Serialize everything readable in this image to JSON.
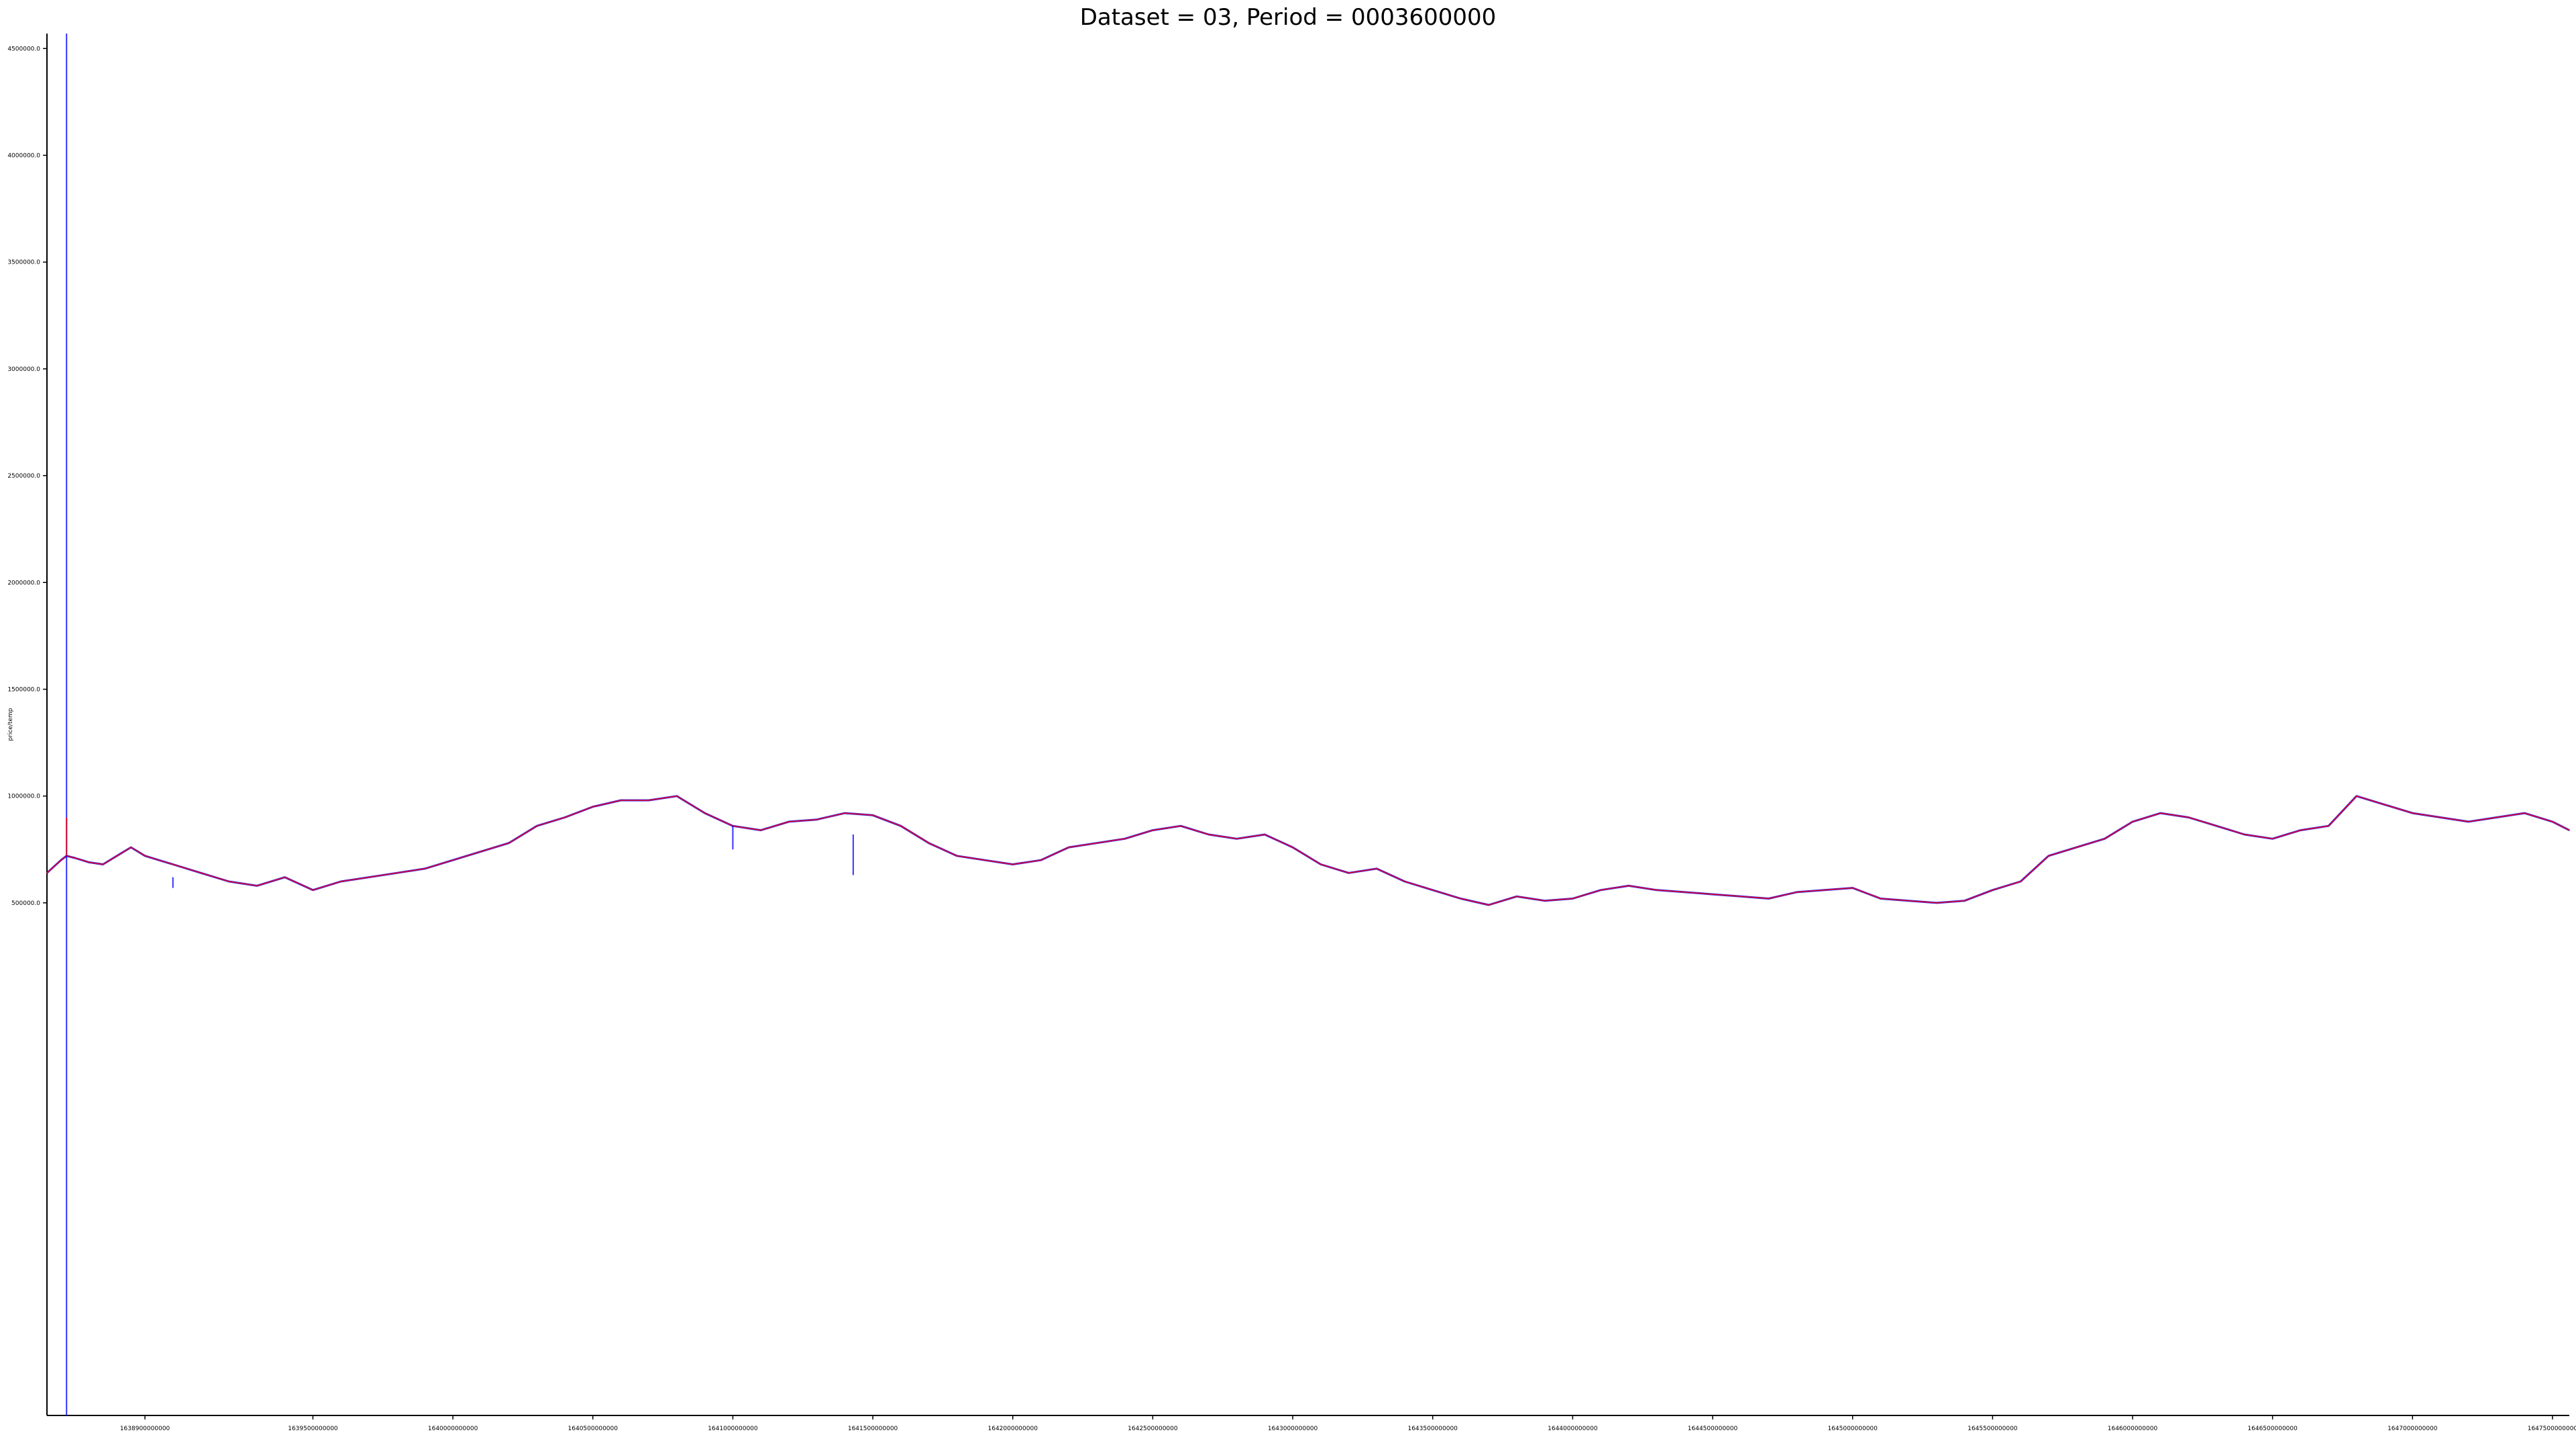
{
  "title": "Dataset = 03, Period = 0003600000",
  "chart_data": {
    "type": "line",
    "title": "Dataset = 03, Period = 0003600000",
    "xlabel": "",
    "ylabel": "price/temp",
    "xlim": [
      1638550000000,
      1647560000000
    ],
    "ylim": [
      -1900000,
      4570000
    ],
    "y_ticks": [
      500000.0,
      1000000.0,
      1500000.0,
      2000000.0,
      2500000.0,
      3000000.0,
      3500000.0,
      4000000.0,
      4500000.0
    ],
    "y_tick_labels": [
      "500000.0",
      "1000000.0",
      "1500000.0",
      "2000000.0",
      "2500000.0",
      "3000000.0",
      "3500000.0",
      "4000000.0",
      "4500000.0"
    ],
    "x_ticks": [
      1638900000000,
      1639500000000,
      1640000000000,
      1640500000000,
      1641000000000,
      1641500000000,
      1642000000000,
      1642500000000,
      1643000000000,
      1643500000000,
      1644000000000,
      1644500000000,
      1645000000000,
      1645500000000,
      1646000000000,
      1646500000000,
      1647000000000,
      1647500000000
    ],
    "x_tick_labels": [
      "1638900000000",
      "1639500000000",
      "1640000000000",
      "1640500000000",
      "1641000000000",
      "1641500000000",
      "1642000000000",
      "1642500000000",
      "1643000000000",
      "1643500000000",
      "1644000000000",
      "1644500000000",
      "1645000000000",
      "1645500000000",
      "1646000000000",
      "1646500000000",
      "1647000000000",
      "1647500000000"
    ],
    "grid": false,
    "legend": "none",
    "series": [
      {
        "color": "#0000ff",
        "x": [
          1638550000000,
          1638600000000,
          1638620000000,
          1638650000000,
          1638700000000,
          1638750000000,
          1638800000000,
          1638850000000,
          1638900000000,
          1639000000000,
          1639100000000,
          1639200000000,
          1639300000000,
          1639400000000,
          1639500000000,
          1639600000000,
          1639700000000,
          1639800000000,
          1639900000000,
          1640000000000,
          1640100000000,
          1640200000000,
          1640300000000,
          1640400000000,
          1640500000000,
          1640600000000,
          1640700000000,
          1640800000000,
          1640900000000,
          1641000000000,
          1641100000000,
          1641200000000,
          1641300000000,
          1641400000000,
          1641500000000,
          1641600000000,
          1641700000000,
          1641800000000,
          1641900000000,
          1642000000000,
          1642100000000,
          1642200000000,
          1642300000000,
          1642400000000,
          1642500000000,
          1642600000000,
          1642700000000,
          1642800000000,
          1642900000000,
          1643000000000,
          1643100000000,
          1643200000000,
          1643300000000,
          1643400000000,
          1643500000000,
          1643600000000,
          1643700000000,
          1643800000000,
          1643900000000,
          1644000000000,
          1644100000000,
          1644200000000,
          1644300000000,
          1644400000000,
          1644500000000,
          1644600000000,
          1644700000000,
          1644800000000,
          1644900000000,
          1645000000000,
          1645100000000,
          1645200000000,
          1645300000000,
          1645400000000,
          1645500000000,
          1645600000000,
          1645700000000,
          1645800000000,
          1645900000000,
          1646000000000,
          1646100000000,
          1646200000000,
          1646300000000,
          1646400000000,
          1646500000000,
          1646600000000,
          1646700000000,
          1646800000000,
          1646900000000,
          1647000000000,
          1647100000000,
          1647200000000,
          1647300000000,
          1647400000000,
          1647500000000,
          1647560000000
        ],
        "y": [
          640000,
          700000,
          720000,
          710000,
          690000,
          680000,
          720000,
          760000,
          720000,
          680000,
          640000,
          600000,
          580000,
          620000,
          560000,
          600000,
          620000,
          640000,
          660000,
          700000,
          740000,
          780000,
          860000,
          900000,
          950000,
          980000,
          980000,
          1000000,
          920000,
          860000,
          840000,
          880000,
          890000,
          920000,
          910000,
          860000,
          780000,
          720000,
          700000,
          680000,
          700000,
          760000,
          780000,
          800000,
          840000,
          860000,
          820000,
          800000,
          820000,
          760000,
          680000,
          640000,
          660000,
          600000,
          560000,
          520000,
          490000,
          530000,
          510000,
          520000,
          560000,
          580000,
          560000,
          550000,
          540000,
          530000,
          520000,
          550000,
          560000,
          570000,
          520000,
          510000,
          500000,
          510000,
          560000,
          600000,
          720000,
          760000,
          800000,
          880000,
          920000,
          900000,
          860000,
          820000,
          800000,
          840000,
          860000,
          1000000,
          960000,
          920000,
          900000,
          880000,
          900000,
          920000,
          880000,
          840000
        ]
      },
      {
        "color": "#ff0000",
        "x": [
          1638550000000,
          1638600000000,
          1638620000000,
          1638650000000,
          1638700000000,
          1638750000000,
          1638800000000,
          1638850000000,
          1638900000000,
          1639000000000,
          1639100000000,
          1639200000000,
          1639300000000,
          1639400000000,
          1639500000000,
          1639600000000,
          1639700000000,
          1639800000000,
          1639900000000,
          1640000000000,
          1640100000000,
          1640200000000,
          1640300000000,
          1640400000000,
          1640500000000,
          1640600000000,
          1640700000000,
          1640800000000,
          1640900000000,
          1641000000000,
          1641100000000,
          1641200000000,
          1641300000000,
          1641400000000,
          1641500000000,
          1641600000000,
          1641700000000,
          1641800000000,
          1641900000000,
          1642000000000,
          1642100000000,
          1642200000000,
          1642300000000,
          1642400000000,
          1642500000000,
          1642600000000,
          1642700000000,
          1642800000000,
          1642900000000,
          1643000000000,
          1643100000000,
          1643200000000,
          1643300000000,
          1643400000000,
          1643500000000,
          1643600000000,
          1643700000000,
          1643800000000,
          1643900000000,
          1644000000000,
          1644100000000,
          1644200000000,
          1644300000000,
          1644400000000,
          1644500000000,
          1644600000000,
          1644700000000,
          1644800000000,
          1644900000000,
          1645000000000,
          1645100000000,
          1645200000000,
          1645300000000,
          1645400000000,
          1645500000000,
          1645600000000,
          1645700000000,
          1645800000000,
          1645900000000,
          1646000000000,
          1646100000000,
          1646200000000,
          1646300000000,
          1646400000000,
          1646500000000,
          1646600000000,
          1646700000000,
          1646800000000,
          1646900000000,
          1647000000000,
          1647100000000,
          1647200000000,
          1647300000000,
          1647400000000,
          1647500000000,
          1647560000000
        ],
        "y": [
          640000,
          700000,
          720000,
          710000,
          690000,
          680000,
          720000,
          760000,
          720000,
          680000,
          640000,
          600000,
          580000,
          620000,
          560000,
          600000,
          620000,
          640000,
          660000,
          700000,
          740000,
          780000,
          860000,
          900000,
          950000,
          980000,
          980000,
          1000000,
          920000,
          860000,
          840000,
          880000,
          890000,
          920000,
          910000,
          860000,
          780000,
          720000,
          700000,
          680000,
          700000,
          760000,
          780000,
          800000,
          840000,
          860000,
          820000,
          800000,
          820000,
          760000,
          680000,
          640000,
          660000,
          600000,
          560000,
          520000,
          490000,
          530000,
          510000,
          520000,
          560000,
          580000,
          560000,
          550000,
          540000,
          530000,
          520000,
          550000,
          560000,
          570000,
          520000,
          510000,
          500000,
          510000,
          560000,
          600000,
          720000,
          760000,
          800000,
          880000,
          920000,
          900000,
          860000,
          820000,
          800000,
          840000,
          860000,
          1000000,
          960000,
          920000,
          900000,
          880000,
          900000,
          920000,
          880000,
          840000
        ]
      }
    ],
    "spikes": [
      {
        "color": "#0000ff",
        "x": 1638620000000,
        "y_from": -1900000,
        "y_to": 4570000
      },
      {
        "color": "#ff0000",
        "x": 1638620000000,
        "y_from": 720000,
        "y_to": 900000
      },
      {
        "color": "#0000ff",
        "x": 1641000000000,
        "y_from": 860000,
        "y_to": 750000
      },
      {
        "color": "#0000ff",
        "x": 1641430000000,
        "y_from": 820000,
        "y_to": 630000
      },
      {
        "color": "#0000ff",
        "x": 1639000000000,
        "y_from": 620000,
        "y_to": 570000
      }
    ]
  }
}
